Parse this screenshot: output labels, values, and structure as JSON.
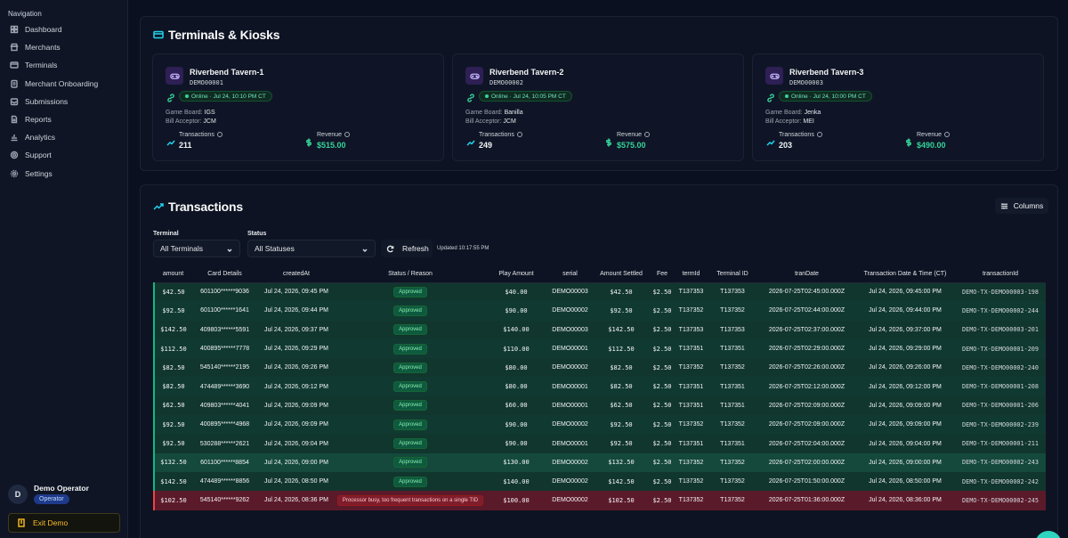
{
  "sidebar": {
    "nav_title": "Navigation",
    "items": [
      {
        "label": "Dashboard",
        "icon": "grid-icon"
      },
      {
        "label": "Merchants",
        "icon": "store-icon"
      },
      {
        "label": "Terminals",
        "icon": "credit-card-icon"
      },
      {
        "label": "Merchant Onboarding",
        "icon": "clipboard-icon"
      },
      {
        "label": "Submissions",
        "icon": "inbox-icon"
      },
      {
        "label": "Reports",
        "icon": "file-icon"
      },
      {
        "label": "Analytics",
        "icon": "bar-chart-icon"
      },
      {
        "label": "Support",
        "icon": "lifebuoy-icon"
      },
      {
        "label": "Settings",
        "icon": "gear-icon"
      }
    ],
    "user": {
      "initial": "D",
      "name": "Demo Operator",
      "role": "Operator"
    },
    "exit_label": "Exit Demo"
  },
  "terminals": {
    "title": "Terminals & Kiosks",
    "cards": [
      {
        "name": "Riverbend Tavern-1",
        "serial": "DEMO00001",
        "status": "Online · Jul 24, 10:10 PM CT",
        "game_board_label": "Game Board:",
        "game_board": "IGS",
        "bill_acceptor_label": "Bill Acceptor:",
        "bill_acceptor": "JCM",
        "transactions_label": "Transactions",
        "transactions": "211",
        "revenue_label": "Revenue",
        "revenue": "$515.00"
      },
      {
        "name": "Riverbend Tavern-2",
        "serial": "DEMO00002",
        "status": "Online · Jul 24, 10:05 PM CT",
        "game_board_label": "Game Board:",
        "game_board": "Banilla",
        "bill_acceptor_label": "Bill Acceptor:",
        "bill_acceptor": "JCM",
        "transactions_label": "Transactions",
        "transactions": "249",
        "revenue_label": "Revenue",
        "revenue": "$575.00"
      },
      {
        "name": "Riverbend Tavern-3",
        "serial": "DEMO00003",
        "status": "Online · Jul 24, 10:00 PM CT",
        "game_board_label": "Game Board:",
        "game_board": "Jenka",
        "bill_acceptor_label": "Bill Acceptor:",
        "bill_acceptor": "MEI",
        "transactions_label": "Transactions",
        "transactions": "203",
        "revenue_label": "Revenue",
        "revenue": "$490.00"
      }
    ]
  },
  "transactions": {
    "title": "Transactions",
    "columns_label": "Columns",
    "terminal_filter_label": "Terminal",
    "terminal_filter_value": "All Terminals",
    "status_filter_label": "Status",
    "status_filter_value": "All Statuses",
    "refresh_label": "Refresh",
    "updated_text": "Updated 10:17:55 PM",
    "headers": [
      "amount",
      "Card Details",
      "createdAt",
      "Status / Reason",
      "Play Amount",
      "serial",
      "Amount Settled",
      "Fee",
      "termId",
      "Terminal ID",
      "tranDate",
      "Transaction Date & Time (CT)",
      "transactionId"
    ],
    "rows": [
      [
        "$42.50",
        "601100******9036",
        "Jul 24, 2026, 09:45 PM",
        "Approved",
        "$40.00",
        "DEMO00003",
        "$42.50",
        "$2.50",
        "T137353",
        "T137353",
        "2026-07-25T02:45:00.000Z",
        "Jul 24, 2026, 09:45:00 PM",
        "DEMO-TX-DEMO00003-198"
      ],
      [
        "$92.50",
        "601100******1641",
        "Jul 24, 2026, 09:44 PM",
        "Approved",
        "$90.00",
        "DEMO00002",
        "$92.50",
        "$2.50",
        "T137352",
        "T137352",
        "2026-07-25T02:44:00.000Z",
        "Jul 24, 2026, 09:44:00 PM",
        "DEMO-TX-DEMO00002-244"
      ],
      [
        "$142.50",
        "409803******5591",
        "Jul 24, 2026, 09:37 PM",
        "Approved",
        "$140.00",
        "DEMO00003",
        "$142.50",
        "$2.50",
        "T137353",
        "T137353",
        "2026-07-25T02:37:00.000Z",
        "Jul 24, 2026, 09:37:00 PM",
        "DEMO-TX-DEMO00003-201"
      ],
      [
        "$112.50",
        "400895******7778",
        "Jul 24, 2026, 09:29 PM",
        "Approved",
        "$110.00",
        "DEMO00001",
        "$112.50",
        "$2.50",
        "T137351",
        "T137351",
        "2026-07-25T02:29:00.000Z",
        "Jul 24, 2026, 09:29:00 PM",
        "DEMO-TX-DEMO00001-209"
      ],
      [
        "$82.50",
        "545140******2195",
        "Jul 24, 2026, 09:26 PM",
        "Approved",
        "$80.00",
        "DEMO00002",
        "$82.50",
        "$2.50",
        "T137352",
        "T137352",
        "2026-07-25T02:26:00.000Z",
        "Jul 24, 2026, 09:26:00 PM",
        "DEMO-TX-DEMO00002-240"
      ],
      [
        "$82.50",
        "474489******3690",
        "Jul 24, 2026, 09:12 PM",
        "Approved",
        "$80.00",
        "DEMO00001",
        "$82.50",
        "$2.50",
        "T137351",
        "T137351",
        "2026-07-25T02:12:00.000Z",
        "Jul 24, 2026, 09:12:00 PM",
        "DEMO-TX-DEMO00001-208"
      ],
      [
        "$62.50",
        "409803******4041",
        "Jul 24, 2026, 09:09 PM",
        "Approved",
        "$60.00",
        "DEMO00001",
        "$62.50",
        "$2.50",
        "T137351",
        "T137351",
        "2026-07-25T02:09:00.000Z",
        "Jul 24, 2026, 09:09:00 PM",
        "DEMO-TX-DEMO00001-206"
      ],
      [
        "$92.50",
        "400895******4968",
        "Jul 24, 2026, 09:09 PM",
        "Approved",
        "$90.00",
        "DEMO00002",
        "$92.50",
        "$2.50",
        "T137352",
        "T137352",
        "2026-07-25T02:09:00.000Z",
        "Jul 24, 2026, 09:09:00 PM",
        "DEMO-TX-DEMO00002-239"
      ],
      [
        "$92.50",
        "530288******2621",
        "Jul 24, 2026, 09:04 PM",
        "Approved",
        "$90.00",
        "DEMO00001",
        "$92.50",
        "$2.50",
        "T137351",
        "T137351",
        "2026-07-25T02:04:00.000Z",
        "Jul 24, 2026, 09:04:00 PM",
        "DEMO-TX-DEMO00001-211"
      ],
      [
        "$132.50",
        "601100******8854",
        "Jul 24, 2026, 09:00 PM",
        "Approved",
        "$130.00",
        "DEMO00002",
        "$132.50",
        "$2.50",
        "T137352",
        "T137352",
        "2026-07-25T02:00:00.000Z",
        "Jul 24, 2026, 09:00:00 PM",
        "DEMO-TX-DEMO00002-243"
      ],
      [
        "$142.50",
        "474489******8856",
        "Jul 24, 2026, 08:50 PM",
        "Approved",
        "$140.00",
        "DEMO00002",
        "$142.50",
        "$2.50",
        "T137352",
        "T137352",
        "2026-07-25T01:50:00.000Z",
        "Jul 24, 2026, 08:50:00 PM",
        "DEMO-TX-DEMO00002-242"
      ],
      [
        "$102.50",
        "545140******9262",
        "Jul 24, 2026, 08:36 PM",
        "Processor busy, too frequent transactions on a single TID",
        "$100.00",
        "DEMO00002",
        "$102.50",
        "$2.50",
        "T137352",
        "T137352",
        "2026-07-25T01:36:00.000Z",
        "Jul 24, 2026, 08:36:00 PM",
        "DEMO-TX-DEMO00002-245"
      ]
    ]
  },
  "colors": {
    "accent": "#22d3ee",
    "approved": "#10b981",
    "error": "#ef4444",
    "revenue": "#34d399",
    "exit": "#fbbf24"
  }
}
